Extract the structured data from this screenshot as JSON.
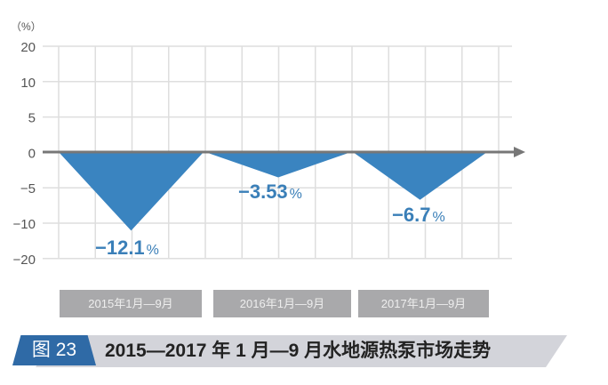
{
  "chart_data": {
    "type": "area",
    "title": "2015—2017 年 1 月—9 月水地源热泵市场走势",
    "figure_label": "图 23",
    "ylabel": "（%）",
    "yticks": [
      20,
      10,
      5,
      0,
      -5,
      -10,
      -20
    ],
    "ylim": [
      -20,
      20
    ],
    "grid": true,
    "categories": [
      "2015年1月—9月",
      "2016年1月—9月",
      "2017年1月—9月"
    ],
    "values": [
      -12.1,
      -3.53,
      -6.7
    ],
    "data_labels": [
      {
        "num": "−12.1",
        "unit": "%"
      },
      {
        "num": "−3.53",
        "unit": "%"
      },
      {
        "num": "−6.7",
        "unit": "%"
      }
    ],
    "colors": {
      "fill": "#3a84c0",
      "label": "#3a7fb8",
      "grid": "#dedede",
      "axis": "#777777"
    }
  }
}
